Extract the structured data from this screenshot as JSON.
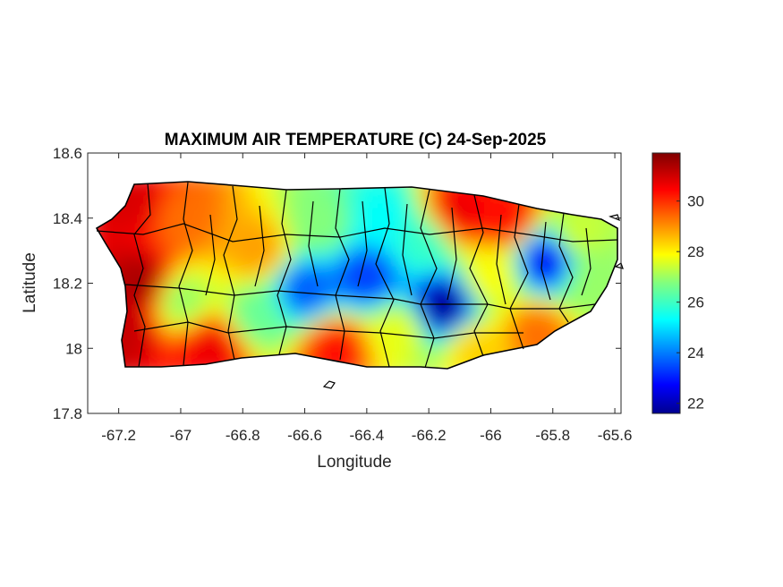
{
  "chart_data": {
    "type": "heatmap",
    "title": "MAXIMUM AIR TEMPERATURE (C) 24-Sep-2025",
    "xlabel": "Longitude",
    "ylabel": "Latitude",
    "xlim": [
      -67.3,
      -65.58
    ],
    "ylim": [
      17.8,
      18.6
    ],
    "xticks": [
      -67.2,
      -67,
      -66.8,
      -66.6,
      -66.4,
      -66.2,
      -66,
      -65.8,
      -65.6
    ],
    "yticks": [
      17.8,
      18,
      18.2,
      18.4,
      18.6
    ],
    "colorbar": {
      "colormap": "jet",
      "range": [
        21.6,
        31.9
      ],
      "ticks": [
        22,
        24,
        26,
        28,
        30
      ]
    },
    "grid": false,
    "legend": "none",
    "region": "Puerto Rico",
    "temperature_field": [
      {
        "lon": -67.15,
        "lat": 18.45,
        "value": 31.0
      },
      {
        "lon": -67.12,
        "lat": 18.2,
        "value": 31.5
      },
      {
        "lon": -67.18,
        "lat": 18.05,
        "value": 31.2
      },
      {
        "lon": -67.0,
        "lat": 18.4,
        "value": 29.5
      },
      {
        "lon": -67.0,
        "lat": 18.15,
        "value": 27.0
      },
      {
        "lon": -66.9,
        "lat": 18.0,
        "value": 30.8
      },
      {
        "lon": -66.75,
        "lat": 18.3,
        "value": 29.0
      },
      {
        "lon": -66.75,
        "lat": 18.1,
        "value": 26.5
      },
      {
        "lon": -66.6,
        "lat": 18.18,
        "value": 23.8
      },
      {
        "lon": -66.55,
        "lat": 18.38,
        "value": 26.8
      },
      {
        "lon": -66.5,
        "lat": 18.0,
        "value": 30.5
      },
      {
        "lon": -66.4,
        "lat": 18.22,
        "value": 23.5
      },
      {
        "lon": -66.35,
        "lat": 18.4,
        "value": 25.5
      },
      {
        "lon": -66.3,
        "lat": 18.05,
        "value": 27.8
      },
      {
        "lon": -66.22,
        "lat": 18.32,
        "value": 26.0
      },
      {
        "lon": -66.15,
        "lat": 18.13,
        "value": 21.8
      },
      {
        "lon": -66.1,
        "lat": 18.42,
        "value": 30.8
      },
      {
        "lon": -66.05,
        "lat": 18.0,
        "value": 28.5
      },
      {
        "lon": -66.0,
        "lat": 18.22,
        "value": 28.0
      },
      {
        "lon": -65.95,
        "lat": 18.4,
        "value": 30.5
      },
      {
        "lon": -65.82,
        "lat": 18.27,
        "value": 22.8
      },
      {
        "lon": -65.85,
        "lat": 18.05,
        "value": 29.5
      },
      {
        "lon": -65.72,
        "lat": 18.35,
        "value": 27.5
      },
      {
        "lon": -65.68,
        "lat": 18.2,
        "value": 27.0
      }
    ]
  }
}
